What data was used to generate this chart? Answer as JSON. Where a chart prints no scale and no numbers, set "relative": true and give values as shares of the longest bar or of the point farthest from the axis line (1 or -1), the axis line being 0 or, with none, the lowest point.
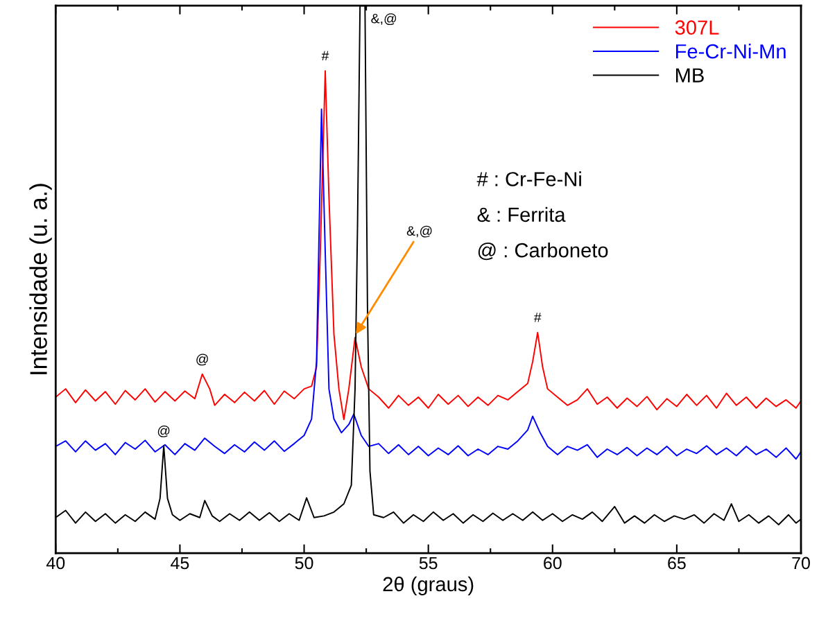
{
  "chart_data": {
    "type": "line",
    "relative": true,
    "xlabel": "2θ (graus)",
    "ylabel": "Intensidade (u. a.)",
    "xlim": [
      40,
      70
    ],
    "xticks": [
      40,
      45,
      50,
      55,
      60,
      65,
      70
    ],
    "legend": "top right",
    "grid": false,
    "tick_labels": "x",
    "series": [
      {
        "name": "307L",
        "color": "#ff0000",
        "x": [
          40.0,
          40.4,
          40.8,
          41.2,
          41.6,
          42.0,
          42.4,
          42.8,
          43.2,
          43.6,
          44.0,
          44.4,
          44.8,
          45.2,
          45.6,
          45.9,
          46.2,
          46.4,
          46.8,
          47.2,
          47.6,
          48.0,
          48.4,
          48.8,
          49.2,
          49.6,
          50.0,
          50.3,
          50.5,
          50.65,
          50.85,
          51.0,
          51.2,
          51.4,
          51.6,
          51.8,
          52.05,
          52.3,
          52.6,
          53.0,
          53.4,
          53.8,
          54.2,
          54.6,
          55.0,
          55.4,
          55.8,
          56.2,
          56.6,
          57.0,
          57.4,
          57.8,
          58.2,
          58.6,
          59.0,
          59.2,
          59.4,
          59.6,
          59.8,
          60.2,
          60.6,
          61.0,
          61.4,
          61.8,
          62.2,
          62.6,
          63.0,
          63.4,
          63.8,
          64.2,
          64.6,
          65.0,
          65.4,
          65.8,
          66.2,
          66.6,
          67.0,
          67.4,
          67.8,
          68.2,
          68.6,
          69.0,
          69.4,
          69.8,
          70.0
        ],
        "values": [
          0.285,
          0.3,
          0.275,
          0.298,
          0.278,
          0.295,
          0.272,
          0.297,
          0.28,
          0.3,
          0.276,
          0.295,
          0.278,
          0.296,
          0.282,
          0.327,
          0.3,
          0.27,
          0.29,
          0.275,
          0.294,
          0.278,
          0.297,
          0.272,
          0.296,
          0.282,
          0.3,
          0.305,
          0.34,
          0.55,
          0.881,
          0.65,
          0.4,
          0.3,
          0.244,
          0.3,
          0.394,
          0.34,
          0.3,
          0.285,
          0.265,
          0.288,
          0.27,
          0.285,
          0.265,
          0.29,
          0.272,
          0.288,
          0.268,
          0.285,
          0.27,
          0.288,
          0.28,
          0.295,
          0.31,
          0.35,
          0.403,
          0.34,
          0.3,
          0.285,
          0.27,
          0.28,
          0.3,
          0.272,
          0.285,
          0.265,
          0.283,
          0.268,
          0.286,
          0.262,
          0.282,
          0.268,
          0.29,
          0.27,
          0.288,
          0.265,
          0.292,
          0.27,
          0.285,
          0.265,
          0.283,
          0.268,
          0.28,
          0.265,
          0.278
        ]
      },
      {
        "name": "Fe-Cr-Ni-Mn",
        "color": "#0000ff",
        "x": [
          40.0,
          40.4,
          40.8,
          41.2,
          41.6,
          42.0,
          42.4,
          42.8,
          43.2,
          43.6,
          44.0,
          44.4,
          44.8,
          45.2,
          45.6,
          46.0,
          46.4,
          46.8,
          47.2,
          47.6,
          48.0,
          48.4,
          48.8,
          49.2,
          49.6,
          50.0,
          50.3,
          50.5,
          50.7,
          50.85,
          51.0,
          51.2,
          51.5,
          51.8,
          52.0,
          52.3,
          52.6,
          53.0,
          53.4,
          53.8,
          54.2,
          54.6,
          55.0,
          55.4,
          55.8,
          56.2,
          56.6,
          57.0,
          57.4,
          57.8,
          58.2,
          58.6,
          59.0,
          59.2,
          59.5,
          59.8,
          60.2,
          60.6,
          61.0,
          61.4,
          61.8,
          62.2,
          62.6,
          63.0,
          63.4,
          63.8,
          64.2,
          64.6,
          65.0,
          65.4,
          65.8,
          66.2,
          66.6,
          67.0,
          67.4,
          67.8,
          68.2,
          68.6,
          69.0,
          69.4,
          69.8,
          70.0
        ],
        "values": [
          0.195,
          0.205,
          0.185,
          0.205,
          0.188,
          0.2,
          0.18,
          0.202,
          0.19,
          0.206,
          0.185,
          0.198,
          0.18,
          0.2,
          0.188,
          0.21,
          0.195,
          0.182,
          0.198,
          0.185,
          0.203,
          0.188,
          0.205,
          0.186,
          0.2,
          0.215,
          0.245,
          0.35,
          0.811,
          0.55,
          0.3,
          0.245,
          0.22,
          0.235,
          0.254,
          0.215,
          0.195,
          0.2,
          0.182,
          0.198,
          0.18,
          0.195,
          0.178,
          0.192,
          0.18,
          0.196,
          0.178,
          0.19,
          0.18,
          0.195,
          0.19,
          0.205,
          0.225,
          0.25,
          0.22,
          0.195,
          0.18,
          0.195,
          0.188,
          0.198,
          0.175,
          0.19,
          0.18,
          0.193,
          0.178,
          0.192,
          0.18,
          0.195,
          0.178,
          0.19,
          0.182,
          0.196,
          0.18,
          0.192,
          0.178,
          0.195,
          0.18,
          0.19,
          0.175,
          0.192,
          0.172,
          0.185
        ]
      },
      {
        "name": "MB",
        "color": "#000000",
        "x": [
          40.0,
          40.4,
          40.8,
          41.2,
          41.6,
          42.0,
          42.4,
          42.8,
          43.2,
          43.6,
          44.0,
          44.2,
          44.35,
          44.5,
          44.7,
          45.0,
          45.4,
          45.8,
          46.0,
          46.3,
          46.6,
          47.0,
          47.4,
          47.8,
          48.2,
          48.6,
          49.0,
          49.4,
          49.8,
          50.1,
          50.4,
          50.8,
          51.2,
          51.6,
          51.9,
          52.05,
          52.15,
          52.25,
          52.45,
          52.55,
          52.65,
          52.8,
          53.2,
          53.6,
          54.0,
          54.4,
          54.8,
          55.2,
          55.6,
          56.0,
          56.4,
          56.8,
          57.2,
          57.6,
          58.0,
          58.4,
          58.8,
          59.2,
          59.6,
          60.0,
          60.4,
          60.8,
          61.2,
          61.6,
          62.0,
          62.5,
          62.9,
          63.3,
          63.7,
          64.1,
          64.5,
          64.9,
          65.3,
          65.7,
          66.1,
          66.5,
          66.9,
          67.2,
          67.5,
          67.9,
          68.3,
          68.7,
          69.1,
          69.5,
          69.8,
          70.0
        ],
        "values": [
          0.065,
          0.078,
          0.055,
          0.075,
          0.058,
          0.072,
          0.055,
          0.07,
          0.058,
          0.075,
          0.062,
          0.1,
          0.196,
          0.1,
          0.07,
          0.06,
          0.072,
          0.065,
          0.096,
          0.068,
          0.058,
          0.072,
          0.06,
          0.075,
          0.06,
          0.074,
          0.058,
          0.072,
          0.06,
          0.101,
          0.065,
          0.068,
          0.075,
          0.09,
          0.124,
          0.3,
          0.6,
          1.0,
          1.0,
          0.45,
          0.15,
          0.07,
          0.065,
          0.075,
          0.055,
          0.07,
          0.058,
          0.075,
          0.06,
          0.072,
          0.055,
          0.07,
          0.058,
          0.073,
          0.06,
          0.072,
          0.06,
          0.075,
          0.06,
          0.072,
          0.058,
          0.07,
          0.062,
          0.075,
          0.058,
          0.085,
          0.055,
          0.068,
          0.055,
          0.07,
          0.058,
          0.068,
          0.062,
          0.07,
          0.055,
          0.072,
          0.06,
          0.09,
          0.058,
          0.07,
          0.055,
          0.068,
          0.052,
          0.07,
          0.055,
          0.062
        ]
      }
    ],
    "annotations": [
      {
        "text": "@",
        "x": 45.9,
        "y": 0.327
      },
      {
        "text": "#",
        "x": 50.85,
        "y": 0.881
      },
      {
        "text": "&,@",
        "x": 52.45,
        "y": 1.0
      },
      {
        "text": "&,@",
        "x": 52.08,
        "y": 0.4
      },
      {
        "text": "@",
        "x": 44.35,
        "y": 0.196
      },
      {
        "text": "#",
        "x": 59.4,
        "y": 0.403
      },
      "# : Cr-Fe-Ni",
      "& : Ferrita",
      "@ : Carboneto"
    ]
  }
}
